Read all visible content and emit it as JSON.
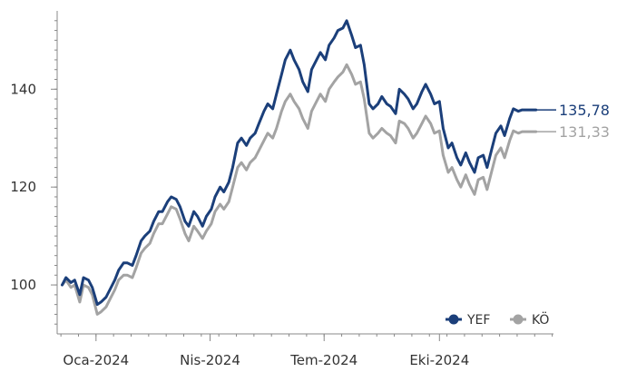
{
  "chart_data": {
    "type": "line",
    "title": "",
    "xlabel": "",
    "ylabel": "",
    "ylim": [
      90,
      156
    ],
    "xlim": [
      "2023-12-01",
      "2024-12-31"
    ],
    "y_ticks": [
      100,
      120,
      140
    ],
    "y_tick_labels": [
      "100",
      "120",
      "140"
    ],
    "x_ticks": [
      {
        "date": "2024-01-01",
        "label": "Oca-2024"
      },
      {
        "date": "2024-04-01",
        "label": "Nis-2024"
      },
      {
        "date": "2024-07-01",
        "label": "Tem-2024"
      },
      {
        "date": "2024-10-01",
        "label": "Eki-2024"
      }
    ],
    "grid": false,
    "legend_position": "bottom-right",
    "colors": {
      "YEF": "#1b3f7a",
      "KÖ": "#a3a3a3",
      "axis": "#888888"
    },
    "series": [
      {
        "name": "YEF",
        "end_label": "135,78",
        "points": [
          [
            "2023-12-05",
            100.0
          ],
          [
            "2023-12-08",
            101.5
          ],
          [
            "2023-12-12",
            100.5
          ],
          [
            "2023-12-15",
            101.0
          ],
          [
            "2023-12-19",
            98.0
          ],
          [
            "2023-12-22",
            101.5
          ],
          [
            "2023-12-26",
            101.0
          ],
          [
            "2023-12-29",
            99.5
          ],
          [
            "2024-01-02",
            96.0
          ],
          [
            "2024-01-05",
            96.5
          ],
          [
            "2024-01-09",
            97.5
          ],
          [
            "2024-01-12",
            99.0
          ],
          [
            "2024-01-16",
            101.0
          ],
          [
            "2024-01-19",
            103.0
          ],
          [
            "2024-01-23",
            104.5
          ],
          [
            "2024-01-26",
            104.5
          ],
          [
            "2024-01-30",
            104.0
          ],
          [
            "2024-02-02",
            106.0
          ],
          [
            "2024-02-06",
            109.0
          ],
          [
            "2024-02-09",
            110.0
          ],
          [
            "2024-02-13",
            111.0
          ],
          [
            "2024-02-16",
            113.0
          ],
          [
            "2024-02-20",
            115.0
          ],
          [
            "2024-02-23",
            115.0
          ],
          [
            "2024-02-27",
            117.0
          ],
          [
            "2024-03-01",
            118.0
          ],
          [
            "2024-03-05",
            117.5
          ],
          [
            "2024-03-08",
            116.0
          ],
          [
            "2024-03-12",
            113.0
          ],
          [
            "2024-03-15",
            112.0
          ],
          [
            "2024-03-19",
            115.0
          ],
          [
            "2024-03-22",
            114.0
          ],
          [
            "2024-03-26",
            112.0
          ],
          [
            "2024-03-29",
            114.0
          ],
          [
            "2024-04-02",
            115.5
          ],
          [
            "2024-04-05",
            118.0
          ],
          [
            "2024-04-09",
            120.0
          ],
          [
            "2024-04-12",
            119.0
          ],
          [
            "2024-04-16",
            121.0
          ],
          [
            "2024-04-19",
            124.0
          ],
          [
            "2024-04-23",
            129.0
          ],
          [
            "2024-04-26",
            130.0
          ],
          [
            "2024-04-30",
            128.5
          ],
          [
            "2024-05-03",
            130.0
          ],
          [
            "2024-05-07",
            131.0
          ],
          [
            "2024-05-10",
            133.0
          ],
          [
            "2024-05-14",
            135.5
          ],
          [
            "2024-05-17",
            137.0
          ],
          [
            "2024-05-21",
            136.0
          ],
          [
            "2024-05-24",
            139.0
          ],
          [
            "2024-05-28",
            143.0
          ],
          [
            "2024-05-31",
            146.0
          ],
          [
            "2024-06-04",
            148.0
          ],
          [
            "2024-06-07",
            146.0
          ],
          [
            "2024-06-11",
            144.0
          ],
          [
            "2024-06-14",
            141.5
          ],
          [
            "2024-06-18",
            139.5
          ],
          [
            "2024-06-21",
            144.0
          ],
          [
            "2024-06-25",
            146.0
          ],
          [
            "2024-06-28",
            147.5
          ],
          [
            "2024-07-02",
            146.0
          ],
          [
            "2024-07-05",
            149.0
          ],
          [
            "2024-07-09",
            150.5
          ],
          [
            "2024-07-12",
            152.0
          ],
          [
            "2024-07-16",
            152.5
          ],
          [
            "2024-07-19",
            154.0
          ],
          [
            "2024-07-23",
            151.0
          ],
          [
            "2024-07-26",
            148.5
          ],
          [
            "2024-07-30",
            149.0
          ],
          [
            "2024-08-02",
            145.0
          ],
          [
            "2024-08-06",
            137.0
          ],
          [
            "2024-08-09",
            136.0
          ],
          [
            "2024-08-13",
            137.0
          ],
          [
            "2024-08-16",
            138.5
          ],
          [
            "2024-08-20",
            137.0
          ],
          [
            "2024-08-23",
            136.5
          ],
          [
            "2024-08-27",
            135.0
          ],
          [
            "2024-08-30",
            140.0
          ],
          [
            "2024-09-03",
            139.0
          ],
          [
            "2024-09-06",
            138.0
          ],
          [
            "2024-09-10",
            136.0
          ],
          [
            "2024-09-13",
            137.0
          ],
          [
            "2024-09-17",
            139.5
          ],
          [
            "2024-09-20",
            141.0
          ],
          [
            "2024-09-24",
            139.0
          ],
          [
            "2024-09-27",
            137.0
          ],
          [
            "2024-10-01",
            137.5
          ],
          [
            "2024-10-04",
            132.0
          ],
          [
            "2024-10-08",
            128.0
          ],
          [
            "2024-10-11",
            129.0
          ],
          [
            "2024-10-15",
            126.0
          ],
          [
            "2024-10-18",
            124.5
          ],
          [
            "2024-10-22",
            127.0
          ],
          [
            "2024-10-25",
            125.0
          ],
          [
            "2024-10-29",
            123.0
          ],
          [
            "2024-11-01",
            126.0
          ],
          [
            "2024-11-05",
            126.5
          ],
          [
            "2024-11-08",
            124.0
          ],
          [
            "2024-11-12",
            128.0
          ],
          [
            "2024-11-15",
            131.0
          ],
          [
            "2024-11-19",
            132.5
          ],
          [
            "2024-11-22",
            130.5
          ],
          [
            "2024-11-26",
            134.0
          ],
          [
            "2024-11-29",
            136.0
          ],
          [
            "2024-12-03",
            135.5
          ],
          [
            "2024-12-06",
            135.78
          ],
          [
            "2024-12-10",
            135.78
          ],
          [
            "2024-12-17",
            135.78
          ]
        ]
      },
      {
        "name": "KÖ",
        "end_label": "131,33",
        "points": [
          [
            "2023-12-05",
            100.0
          ],
          [
            "2023-12-08",
            101.0
          ],
          [
            "2023-12-12",
            99.5
          ],
          [
            "2023-12-15",
            100.0
          ],
          [
            "2023-12-19",
            96.5
          ],
          [
            "2023-12-22",
            100.0
          ],
          [
            "2023-12-26",
            99.5
          ],
          [
            "2023-12-29",
            98.0
          ],
          [
            "2024-01-02",
            94.0
          ],
          [
            "2024-01-05",
            94.5
          ],
          [
            "2024-01-09",
            95.5
          ],
          [
            "2024-01-12",
            97.0
          ],
          [
            "2024-01-16",
            99.0
          ],
          [
            "2024-01-19",
            101.0
          ],
          [
            "2024-01-23",
            102.0
          ],
          [
            "2024-01-26",
            102.0
          ],
          [
            "2024-01-30",
            101.5
          ],
          [
            "2024-02-02",
            103.5
          ],
          [
            "2024-02-06",
            106.5
          ],
          [
            "2024-02-09",
            107.5
          ],
          [
            "2024-02-13",
            108.5
          ],
          [
            "2024-02-16",
            110.5
          ],
          [
            "2024-02-20",
            112.5
          ],
          [
            "2024-02-23",
            112.5
          ],
          [
            "2024-02-27",
            114.5
          ],
          [
            "2024-03-01",
            116.0
          ],
          [
            "2024-03-05",
            115.5
          ],
          [
            "2024-03-08",
            113.5
          ],
          [
            "2024-03-12",
            110.5
          ],
          [
            "2024-03-15",
            109.0
          ],
          [
            "2024-03-19",
            112.0
          ],
          [
            "2024-03-22",
            111.0
          ],
          [
            "2024-03-26",
            109.5
          ],
          [
            "2024-03-29",
            111.0
          ],
          [
            "2024-04-02",
            112.5
          ],
          [
            "2024-04-05",
            115.0
          ],
          [
            "2024-04-09",
            116.5
          ],
          [
            "2024-04-12",
            115.5
          ],
          [
            "2024-04-16",
            117.0
          ],
          [
            "2024-04-19",
            120.0
          ],
          [
            "2024-04-23",
            124.0
          ],
          [
            "2024-04-26",
            125.0
          ],
          [
            "2024-04-30",
            123.5
          ],
          [
            "2024-05-03",
            125.0
          ],
          [
            "2024-05-07",
            126.0
          ],
          [
            "2024-05-10",
            127.5
          ],
          [
            "2024-05-14",
            129.5
          ],
          [
            "2024-05-17",
            131.0
          ],
          [
            "2024-05-21",
            130.0
          ],
          [
            "2024-05-24",
            132.0
          ],
          [
            "2024-05-28",
            135.5
          ],
          [
            "2024-05-31",
            137.5
          ],
          [
            "2024-06-04",
            139.0
          ],
          [
            "2024-06-07",
            137.5
          ],
          [
            "2024-06-11",
            136.0
          ],
          [
            "2024-06-14",
            134.0
          ],
          [
            "2024-06-18",
            132.0
          ],
          [
            "2024-06-21",
            135.5
          ],
          [
            "2024-06-25",
            137.5
          ],
          [
            "2024-06-28",
            139.0
          ],
          [
            "2024-07-02",
            137.5
          ],
          [
            "2024-07-05",
            140.0
          ],
          [
            "2024-07-09",
            141.5
          ],
          [
            "2024-07-12",
            142.5
          ],
          [
            "2024-07-16",
            143.5
          ],
          [
            "2024-07-19",
            145.0
          ],
          [
            "2024-07-23",
            143.0
          ],
          [
            "2024-07-26",
            141.0
          ],
          [
            "2024-07-30",
            141.5
          ],
          [
            "2024-08-02",
            138.0
          ],
          [
            "2024-08-06",
            131.0
          ],
          [
            "2024-08-09",
            130.0
          ],
          [
            "2024-08-13",
            131.0
          ],
          [
            "2024-08-16",
            132.0
          ],
          [
            "2024-08-20",
            131.0
          ],
          [
            "2024-08-23",
            130.5
          ],
          [
            "2024-08-27",
            129.0
          ],
          [
            "2024-08-30",
            133.5
          ],
          [
            "2024-09-03",
            133.0
          ],
          [
            "2024-09-06",
            132.0
          ],
          [
            "2024-09-10",
            130.0
          ],
          [
            "2024-09-13",
            131.0
          ],
          [
            "2024-09-17",
            133.0
          ],
          [
            "2024-09-20",
            134.5
          ],
          [
            "2024-09-24",
            133.0
          ],
          [
            "2024-09-27",
            131.0
          ],
          [
            "2024-10-01",
            131.5
          ],
          [
            "2024-10-04",
            126.5
          ],
          [
            "2024-10-08",
            123.0
          ],
          [
            "2024-10-11",
            124.0
          ],
          [
            "2024-10-15",
            121.5
          ],
          [
            "2024-10-18",
            120.0
          ],
          [
            "2024-10-22",
            122.5
          ],
          [
            "2024-10-25",
            120.5
          ],
          [
            "2024-10-29",
            118.5
          ],
          [
            "2024-11-01",
            121.5
          ],
          [
            "2024-11-05",
            122.0
          ],
          [
            "2024-11-08",
            119.5
          ],
          [
            "2024-11-12",
            123.5
          ],
          [
            "2024-11-15",
            126.5
          ],
          [
            "2024-11-19",
            128.0
          ],
          [
            "2024-11-22",
            126.0
          ],
          [
            "2024-11-26",
            129.5
          ],
          [
            "2024-11-29",
            131.5
          ],
          [
            "2024-12-03",
            131.0
          ],
          [
            "2024-12-06",
            131.33
          ],
          [
            "2024-12-10",
            131.33
          ],
          [
            "2024-12-17",
            131.33
          ]
        ]
      }
    ]
  }
}
